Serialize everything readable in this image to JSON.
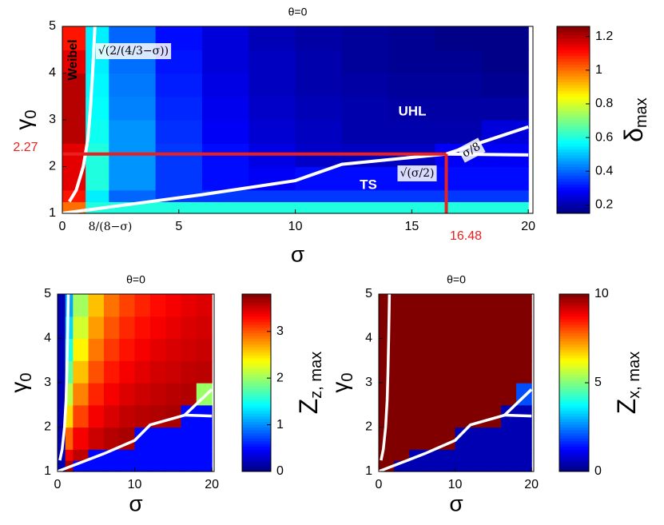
{
  "chart_data": [
    {
      "type": "heatmap",
      "title": "θ=0",
      "xlabel": "σ",
      "ylabel": "γ",
      "ylabel_sub": "0",
      "xlim": [
        0,
        20.2
      ],
      "ylim": [
        1,
        5
      ],
      "xticks": [
        0,
        5,
        10,
        15,
        20
      ],
      "yticks": [
        1,
        2,
        3,
        4,
        5
      ],
      "x_edges": [
        0,
        1,
        2,
        4,
        6,
        8,
        10,
        12,
        14,
        16,
        18,
        20
      ],
      "y_edges": [
        1,
        1.25,
        1.5,
        2,
        2.5,
        3,
        3.5,
        4,
        4.5,
        5
      ],
      "z": [
        [
          1.0,
          0.6,
          0.6,
          0.6,
          0.6,
          0.6,
          0.6,
          0.6,
          0.6,
          0.6,
          0.6
        ],
        [
          1.1,
          0.55,
          0.4,
          0.35,
          0.35,
          0.35,
          0.35,
          0.35,
          0.35,
          0.35,
          0.35
        ],
        [
          1.15,
          0.6,
          0.45,
          0.35,
          0.3,
          0.28,
          0.3,
          0.3,
          0.3,
          0.3,
          0.3
        ],
        [
          1.15,
          0.6,
          0.45,
          0.35,
          0.3,
          0.26,
          0.23,
          0.22,
          0.22,
          0.28,
          0.28
        ],
        [
          1.2,
          0.58,
          0.45,
          0.34,
          0.28,
          0.24,
          0.22,
          0.2,
          0.2,
          0.2,
          0.25
        ],
        [
          1.2,
          0.57,
          0.43,
          0.33,
          0.27,
          0.23,
          0.21,
          0.2,
          0.19,
          0.19,
          0.19
        ],
        [
          1.2,
          0.56,
          0.42,
          0.32,
          0.26,
          0.22,
          0.2,
          0.19,
          0.18,
          0.18,
          0.17
        ],
        [
          1.15,
          0.55,
          0.41,
          0.31,
          0.25,
          0.22,
          0.2,
          0.18,
          0.17,
          0.17,
          0.16
        ],
        [
          1.1,
          0.55,
          0.4,
          0.3,
          0.25,
          0.21,
          0.19,
          0.18,
          0.17,
          0.16,
          0.16
        ]
      ],
      "colorbar": {
        "label": "δ",
        "label_sub": "max",
        "clim": [
          0.15,
          1.26
        ],
        "ticks": [
          0.2,
          0.4,
          0.6,
          0.8,
          1,
          1.2
        ]
      },
      "lines": [
        {
          "color": "#ffffff",
          "x": [
            0.3,
            0.6,
            0.9,
            1.1,
            1.2,
            1.3,
            1.4
          ],
          "y": [
            1.25,
            1.5,
            2,
            2.6,
            3.2,
            4,
            5
          ]
        },
        {
          "color": "#ffffff",
          "x": [
            0,
            3,
            6,
            10,
            12,
            16.48
          ],
          "y": [
            1,
            1.2,
            1.4,
            1.7,
            2.05,
            2.27
          ]
        },
        {
          "color": "#ffffff",
          "x": [
            16.48,
            20
          ],
          "y": [
            2.27,
            2.25
          ]
        },
        {
          "color": "#ffffff",
          "x": [
            16.48,
            20
          ],
          "y": [
            2.27,
            2.85
          ]
        },
        {
          "color": "#e8201f",
          "x": [
            0,
            16.48
          ],
          "y": [
            2.27,
            2.27
          ]
        },
        {
          "color": "#e8201f",
          "x": [
            16.48,
            16.48
          ],
          "y": [
            1,
            2.27
          ]
        }
      ],
      "annotations": [
        {
          "text": "Weibel",
          "color": "#000000"
        },
        {
          "text": "UHL",
          "color": "#ffffff"
        },
        {
          "text": "TS",
          "color": "#ffffff"
        },
        {
          "text": "√(2/(4/3−σ))",
          "color": "#000000"
        },
        {
          "text": "8/(8−σ)",
          "color": "#000000"
        },
        {
          "text": "σ/8",
          "color": "#000000"
        },
        {
          "text": "√(σ/2)",
          "color": "#000000"
        },
        {
          "text": "2.27",
          "color": "#e8201f"
        },
        {
          "text": "16.48",
          "color": "#e8201f"
        }
      ]
    },
    {
      "type": "heatmap",
      "title": "θ=0",
      "xlabel": "σ",
      "ylabel": "γ",
      "ylabel_sub": "0",
      "xlim": [
        0,
        20.3
      ],
      "ylim": [
        1,
        5
      ],
      "xticks": [
        0,
        10,
        20
      ],
      "yticks": [
        1,
        2,
        3,
        4,
        5
      ],
      "x_edges": [
        0,
        1,
        2,
        4,
        6,
        8,
        10,
        12,
        14,
        16,
        18,
        20
      ],
      "y_edges": [
        1,
        1.25,
        1.5,
        2,
        2.5,
        3,
        3.5,
        4,
        4.5,
        5
      ],
      "z": [
        [
          0.2,
          3.65,
          0.5,
          0.5,
          0.5,
          0.5,
          0.5,
          0.5,
          0.5,
          0.5,
          0.5
        ],
        [
          0.2,
          3.36,
          3.57,
          0.5,
          0.5,
          0.5,
          0.5,
          0.5,
          0.5,
          0.5,
          0.5
        ],
        [
          0.2,
          2.96,
          3.36,
          3.52,
          3.6,
          3.65,
          0.5,
          0.5,
          0.5,
          0.5,
          0.5
        ],
        [
          0.2,
          2.51,
          3.08,
          3.36,
          3.47,
          3.55,
          3.59,
          3.62,
          3.65,
          0.5,
          0.5
        ],
        [
          0.2,
          2.12,
          2.84,
          3.19,
          3.36,
          3.45,
          3.51,
          3.55,
          3.59,
          3.61,
          2.0
        ],
        [
          0.2,
          1.79,
          2.61,
          3.03,
          3.24,
          3.36,
          3.43,
          3.49,
          3.52,
          3.56,
          3.58
        ],
        [
          0.2,
          1.52,
          2.41,
          2.88,
          3.12,
          3.26,
          3.36,
          3.42,
          3.47,
          3.5,
          3.53
        ],
        [
          0.2,
          1.28,
          2.21,
          2.74,
          3.01,
          3.18,
          3.28,
          3.36,
          3.41,
          3.46,
          3.49
        ],
        [
          0.2,
          1.09,
          2.03,
          2.61,
          2.9,
          3.08,
          3.2,
          3.29,
          3.36,
          3.41,
          3.45
        ]
      ],
      "colorbar": {
        "label": "Z",
        "label_sub": "z, max",
        "clim": [
          0,
          3.8
        ],
        "ticks": [
          0,
          1,
          2,
          3
        ]
      },
      "lines": [
        {
          "color": "#ffffff",
          "x": [
            0.3,
            0.6,
            0.9,
            1.1,
            1.2,
            1.3,
            1.4
          ],
          "y": [
            1.25,
            1.5,
            2,
            2.6,
            3.2,
            4,
            5
          ]
        },
        {
          "color": "#ffffff",
          "x": [
            0,
            3,
            6,
            10,
            12,
            16.48
          ],
          "y": [
            1,
            1.2,
            1.4,
            1.7,
            2.05,
            2.27
          ]
        },
        {
          "color": "#ffffff",
          "x": [
            16.48,
            20
          ],
          "y": [
            2.27,
            2.25
          ]
        },
        {
          "color": "#ffffff",
          "x": [
            16.48,
            20
          ],
          "y": [
            2.27,
            2.85
          ]
        }
      ]
    },
    {
      "type": "heatmap",
      "title": "θ=0",
      "xlabel": "σ",
      "ylabel": "γ",
      "ylabel_sub": "0",
      "xlim": [
        0,
        20.3
      ],
      "ylim": [
        1,
        5
      ],
      "xticks": [
        0,
        10,
        20
      ],
      "yticks": [
        1,
        2,
        3,
        4,
        5
      ],
      "x_edges": [
        0,
        1,
        2,
        4,
        6,
        8,
        10,
        12,
        14,
        16,
        18,
        20
      ],
      "y_edges": [
        1,
        1.25,
        1.5,
        2,
        2.5,
        3,
        3.5,
        4,
        4.5,
        5
      ],
      "z": [
        [
          10,
          10,
          0.5,
          0.5,
          0.5,
          0.5,
          0.5,
          0.5,
          0.5,
          0.5,
          0.5
        ],
        [
          10,
          10,
          10,
          0.5,
          0.5,
          0.5,
          0.5,
          0.5,
          0.5,
          0.5,
          0.5
        ],
        [
          10,
          10,
          10,
          10,
          10,
          10,
          0.5,
          0.5,
          0.5,
          0.5,
          0.5
        ],
        [
          10,
          10,
          10,
          10,
          10,
          10,
          10,
          10,
          10,
          0.5,
          0.5
        ],
        [
          10,
          10,
          10,
          10,
          10,
          10,
          10,
          10,
          10,
          10,
          2
        ],
        [
          10,
          10,
          10,
          10,
          10,
          10,
          10,
          10,
          10,
          10,
          10
        ],
        [
          10,
          10,
          10,
          10,
          10,
          10,
          10,
          10,
          10,
          10,
          10
        ],
        [
          10,
          10,
          10,
          10,
          10,
          10,
          10,
          10,
          10,
          10,
          10
        ],
        [
          10,
          10,
          10,
          10,
          10,
          10,
          10,
          10,
          10,
          10,
          10
        ]
      ],
      "colorbar": {
        "label": "Z",
        "label_sub": "x, max",
        "clim": [
          0,
          10
        ],
        "ticks": [
          0,
          5,
          10
        ]
      },
      "lines": [
        {
          "color": "#ffffff",
          "x": [
            0.3,
            0.6,
            0.9,
            1.1,
            1.2,
            1.3,
            1.4
          ],
          "y": [
            1.25,
            1.5,
            2,
            2.6,
            3.2,
            4,
            5
          ]
        },
        {
          "color": "#ffffff",
          "x": [
            0,
            3,
            6,
            10,
            12,
            16.48
          ],
          "y": [
            1,
            1.2,
            1.4,
            1.7,
            2.05,
            2.27
          ]
        },
        {
          "color": "#ffffff",
          "x": [
            16.48,
            20
          ],
          "y": [
            2.27,
            2.25
          ]
        },
        {
          "color": "#ffffff",
          "x": [
            16.48,
            20
          ],
          "y": [
            2.27,
            2.85
          ]
        }
      ]
    }
  ]
}
